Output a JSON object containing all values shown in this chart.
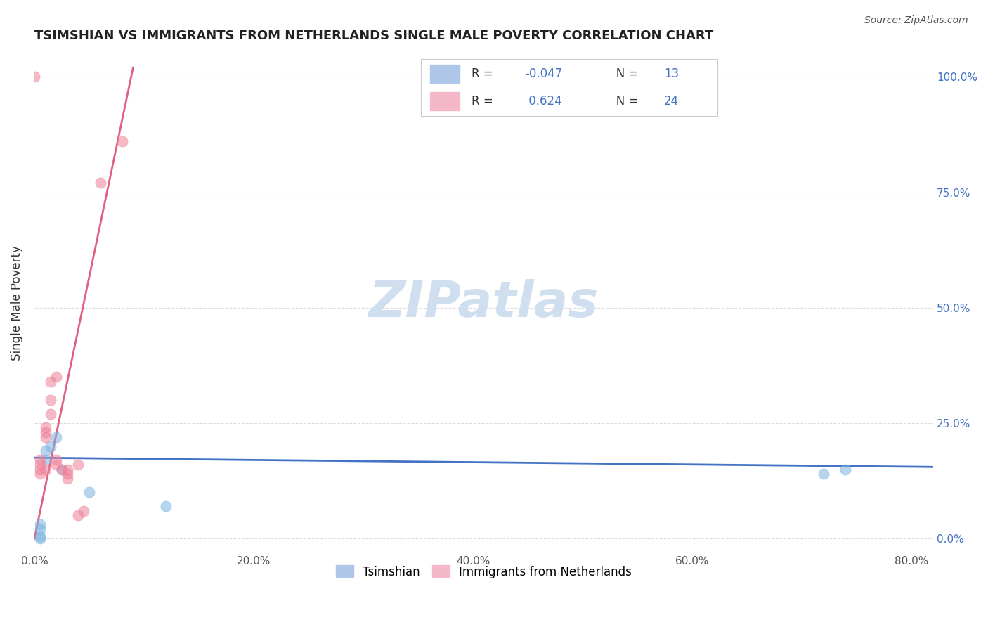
{
  "title": "TSIMSHIAN VS IMMIGRANTS FROM NETHERLANDS SINGLE MALE POVERTY CORRELATION CHART",
  "source": "Source: ZipAtlas.com",
  "ylabel": "Single Male Poverty",
  "xlabel_ticks": [
    "0.0%",
    "20.0%",
    "40.0%",
    "60.0%",
    "80.0%"
  ],
  "xlabel_vals": [
    0.0,
    0.2,
    0.4,
    0.6,
    0.8
  ],
  "ylabel_ticks": [
    "0.0%",
    "25.0%",
    "50.0%",
    "75.0%",
    "100.0%"
  ],
  "ylabel_vals": [
    0.0,
    0.25,
    0.5,
    0.75,
    1.0
  ],
  "xlim": [
    0.0,
    0.82
  ],
  "ylim": [
    -0.03,
    1.05
  ],
  "legend_entries": [
    {
      "label": "R = -0.047   N = 13",
      "color": "#aec6e8"
    },
    {
      "label": "R =  0.624   N = 24",
      "color": "#f4b8c8"
    }
  ],
  "blue_scatter_x": [
    0.005,
    0.005,
    0.005,
    0.005,
    0.01,
    0.01,
    0.015,
    0.02,
    0.025,
    0.05,
    0.72,
    0.74,
    0.12
  ],
  "blue_scatter_y": [
    0.0,
    0.02,
    0.03,
    0.005,
    0.17,
    0.19,
    0.2,
    0.22,
    0.15,
    0.1,
    0.14,
    0.15,
    0.07
  ],
  "pink_scatter_x": [
    0.0,
    0.005,
    0.005,
    0.005,
    0.005,
    0.01,
    0.01,
    0.01,
    0.01,
    0.015,
    0.015,
    0.015,
    0.02,
    0.02,
    0.02,
    0.025,
    0.03,
    0.03,
    0.03,
    0.04,
    0.04,
    0.045,
    0.06,
    0.08
  ],
  "pink_scatter_y": [
    1.0,
    0.17,
    0.16,
    0.14,
    0.15,
    0.22,
    0.23,
    0.24,
    0.15,
    0.27,
    0.3,
    0.34,
    0.35,
    0.17,
    0.16,
    0.15,
    0.14,
    0.13,
    0.15,
    0.16,
    0.05,
    0.06,
    0.77,
    0.86
  ],
  "blue_line_x": [
    0.0,
    0.82
  ],
  "blue_line_y": [
    0.175,
    0.155
  ],
  "pink_line_x": [
    0.0,
    0.09
  ],
  "pink_line_y": [
    0.0,
    1.02
  ],
  "scatter_alpha": 0.55,
  "scatter_size": 120,
  "blue_color": "#7ab3e0",
  "pink_color": "#f08098",
  "blue_line_color": "#4472c4",
  "pink_line_color": "#e06080",
  "watermark": "ZIPatlas",
  "watermark_color": "#d0dff0",
  "background_color": "#ffffff",
  "grid_color": "#dddddd"
}
